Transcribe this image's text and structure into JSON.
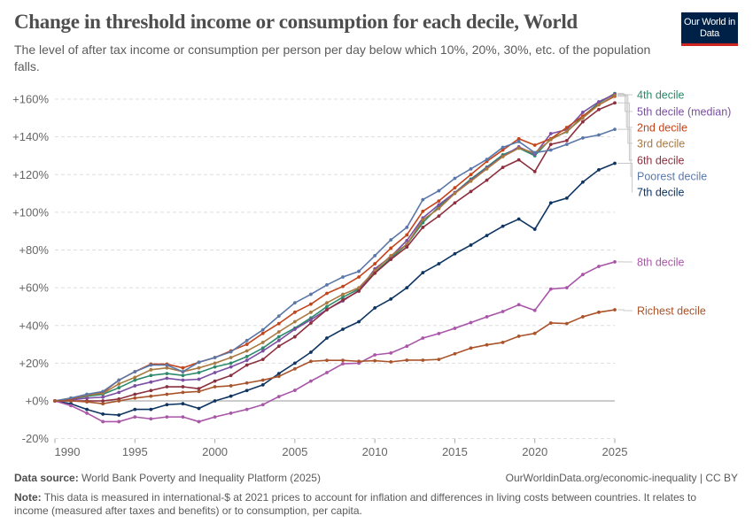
{
  "header": {
    "title": "Change in threshold income or consumption for each decile, World",
    "subtitle": "The level of after tax income or consumption per person per day below which 10%, 20%, 30%, etc. of the population falls.",
    "logo_text": "Our World in Data"
  },
  "footer": {
    "source_label": "Data source:",
    "source_text": "World Bank Poverty and Inequality Platform (2025)",
    "url": "OurWorldinData.org/economic-inequality | CC BY",
    "note_label": "Note:",
    "note_text": "This data is measured in international-$ at 2021 prices to account for inflation and differences in living costs between countries. It relates to income (measured after taxes and benefits) or to consumption, per capita."
  },
  "chart_data": {
    "type": "line",
    "title": "Change in threshold income or consumption for each decile, World",
    "xlabel": "",
    "ylabel": "",
    "xlim": [
      1990,
      2025
    ],
    "ylim": [
      -20,
      160
    ],
    "x_ticks": [
      "1990",
      "1995",
      "2000",
      "2005",
      "2010",
      "2015",
      "2020",
      "2025"
    ],
    "y_ticks": [
      "-20%",
      "+0%",
      "+20%",
      "+40%",
      "+60%",
      "+80%",
      "+100%",
      "+120%",
      "+140%",
      "+160%"
    ],
    "grid": "horizontal dashed",
    "legend": "right (line-end labels)",
    "x": [
      1990,
      1991,
      1992,
      1993,
      1994,
      1995,
      1996,
      1997,
      1998,
      1999,
      2000,
      2001,
      2002,
      2003,
      2004,
      2005,
      2006,
      2007,
      2008,
      2009,
      2010,
      2011,
      2012,
      2013,
      2014,
      2015,
      2016,
      2017,
      2018,
      2019,
      2020,
      2021,
      2022,
      2023,
      2024,
      2025
    ],
    "series": [
      {
        "name": "4th decile",
        "color": "#2b8a6b",
        "values": [
          0,
          1,
          2.5,
          3.5,
          7,
          11,
          13.5,
          14.5,
          13.5,
          15,
          18,
          20,
          23.5,
          28,
          34,
          38.6,
          44,
          50,
          55,
          59.3,
          68,
          75.7,
          83,
          94.5,
          103,
          110.4,
          117.6,
          124,
          130.5,
          134,
          130,
          139,
          142.7,
          150.8,
          158,
          163
        ]
      },
      {
        "name": "5th decile (median)",
        "color": "#7b4ea3",
        "values": [
          0,
          0.5,
          1.5,
          2,
          4.5,
          8,
          10,
          12,
          11,
          11.5,
          15,
          18,
          21.5,
          26.5,
          32,
          38,
          43,
          48.4,
          53,
          58.6,
          70,
          76.5,
          85,
          97,
          104,
          110.4,
          117,
          123.5,
          129.7,
          134.7,
          130.8,
          141.7,
          143.8,
          153,
          158.6,
          162.6
        ]
      },
      {
        "name": "2nd decile",
        "color": "#c2451c",
        "values": [
          0,
          1,
          3,
          4.5,
          11,
          15.5,
          19.5,
          19.5,
          17.5,
          20.5,
          23,
          26.5,
          30,
          35.8,
          41,
          47,
          51.3,
          57,
          60.7,
          65.7,
          72.7,
          81,
          88,
          100.5,
          106,
          113,
          120,
          127,
          133,
          139,
          135.6,
          139,
          145,
          151,
          157,
          161.5
        ]
      },
      {
        "name": "3rd decile",
        "color": "#a9793f",
        "values": [
          0,
          1.5,
          3,
          4,
          9,
          12.5,
          16.5,
          17.5,
          15.5,
          17.5,
          20,
          23,
          26.5,
          31,
          36.6,
          42,
          47,
          52,
          56.5,
          60,
          69,
          77,
          83,
          96,
          102,
          110,
          116.5,
          123,
          129.5,
          134,
          131.5,
          138.5,
          143,
          150,
          157,
          162
        ]
      },
      {
        "name": "6th decile",
        "color": "#8c2f3e",
        "values": [
          0,
          0,
          0,
          0,
          1,
          3.5,
          5.5,
          7.5,
          7.5,
          6.5,
          10.5,
          13.5,
          19,
          22,
          29,
          34,
          41.3,
          48.3,
          53.5,
          58.2,
          67.7,
          75,
          81.6,
          92,
          98,
          105,
          111,
          117,
          123.8,
          127.8,
          121.6,
          136,
          138,
          148,
          154.5,
          158
        ]
      },
      {
        "name": "Poorest decile",
        "color": "#5a77a8",
        "values": [
          0,
          1.5,
          3.5,
          5,
          11,
          15.5,
          19,
          19,
          15.5,
          20.5,
          23,
          26,
          32,
          37.7,
          45,
          52,
          56.5,
          61.5,
          65.7,
          68.7,
          77,
          85.4,
          92,
          106.7,
          111.4,
          118,
          123,
          128,
          134.4,
          137.5,
          131.6,
          133,
          136,
          139.4,
          141,
          144
        ]
      },
      {
        "name": "7th decile",
        "color": "#0e3561",
        "values": [
          0,
          -1.5,
          -4.5,
          -7,
          -7.5,
          -4.5,
          -4.5,
          -2,
          -1.5,
          -4,
          0,
          2.5,
          5.5,
          8.5,
          14.5,
          20,
          25.8,
          33.3,
          38,
          42,
          49.3,
          54,
          60,
          68,
          72.7,
          78,
          82.6,
          87.7,
          92.6,
          96.4,
          91,
          105,
          107.5,
          116,
          122.5,
          126
        ]
      },
      {
        "name": "8th decile",
        "color": "#a956a8",
        "values": [
          0,
          -2.5,
          -6.5,
          -11,
          -11,
          -8.5,
          -9.5,
          -8.5,
          -8.5,
          -11,
          -8.5,
          -6.5,
          -4.5,
          -2,
          2.3,
          5.6,
          10.5,
          15,
          19.7,
          20,
          24.4,
          25.4,
          29,
          33.3,
          35.7,
          38.5,
          41.5,
          44.6,
          47.4,
          51,
          48,
          59.3,
          60,
          67,
          71.3,
          73.7
        ]
      },
      {
        "name": "Richest decile",
        "color": "#a9542b",
        "values": [
          0,
          0,
          -0.5,
          -1.5,
          0,
          1.5,
          2.5,
          3.5,
          4.5,
          5,
          7.5,
          8,
          9.5,
          11,
          13,
          17,
          21,
          21.5,
          21.5,
          21,
          21.3,
          20.7,
          21.6,
          21.6,
          22,
          25,
          28,
          29.7,
          31,
          34.3,
          35.8,
          41.3,
          41,
          44.6,
          47,
          48.3
        ]
      }
    ]
  }
}
